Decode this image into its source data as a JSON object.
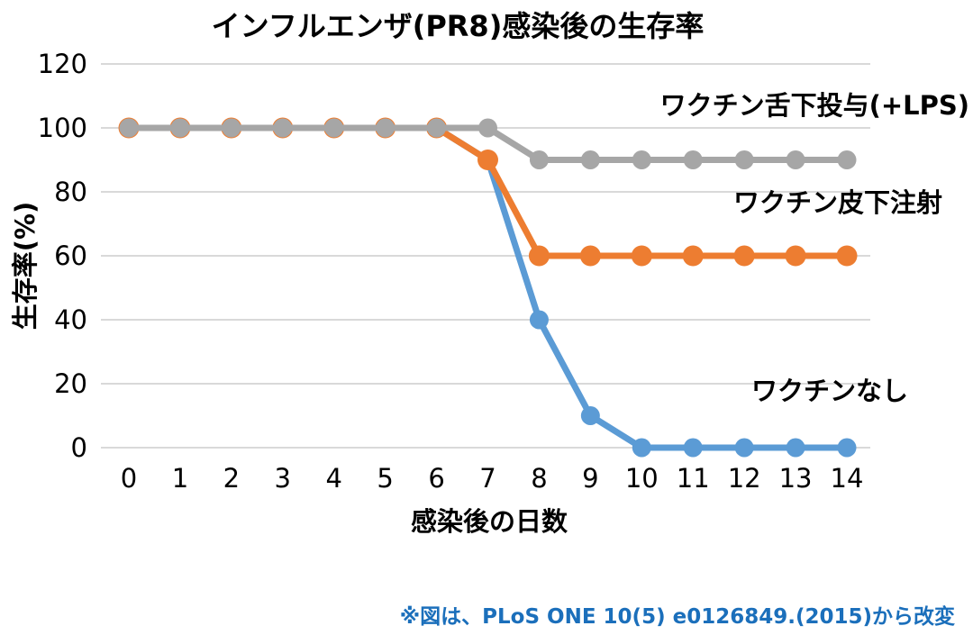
{
  "chart_data": {
    "type": "line",
    "title": "インフルエンザ(PR8)感染後の生存率",
    "xlabel": "感染後の日数",
    "ylabel": "生存率(%)",
    "x": [
      0,
      1,
      2,
      3,
      4,
      5,
      6,
      7,
      8,
      9,
      10,
      11,
      12,
      13,
      14
    ],
    "x_tick_labels": [
      "0",
      "1",
      "2",
      "3",
      "4",
      "5",
      "6",
      "7",
      "8",
      "9",
      "10",
      "11",
      "12",
      "13",
      "14"
    ],
    "y_ticks": [
      0,
      20,
      40,
      60,
      80,
      100,
      120
    ],
    "ylim": [
      0,
      120
    ],
    "grid": "horizontal",
    "gridline_color": "#d9d9d9",
    "legend_position": "inline-annotations",
    "series": [
      {
        "key": "no-vaccine",
        "name": "ワクチンなし",
        "color": "#5b9bd5",
        "values": [
          100,
          100,
          100,
          100,
          100,
          100,
          100,
          90,
          40,
          10,
          0,
          0,
          0,
          0,
          0
        ]
      },
      {
        "key": "subcutaneous",
        "name": "ワクチン皮下注射",
        "color": "#ed7d31",
        "values": [
          100,
          100,
          100,
          100,
          100,
          100,
          100,
          90,
          60,
          60,
          60,
          60,
          60,
          60,
          60
        ]
      },
      {
        "key": "sublingual-lps",
        "name": "ワクチン舌下投与(+LPS)",
        "color": "#a6a6a6",
        "values": [
          100,
          100,
          100,
          100,
          100,
          100,
          100,
          100,
          90,
          90,
          90,
          90,
          90,
          90,
          90
        ]
      }
    ]
  },
  "annotations": {
    "sublingual_label": "ワクチン舌下投与(+LPS)",
    "subcutaneous_label": "ワクチン皮下注射",
    "no_vaccine_label": "ワクチンなし"
  },
  "footer": {
    "source_note": "※図は、PLoS ONE 10(5) e0126849.(2015)から改変",
    "color": "#1b6fbb"
  }
}
